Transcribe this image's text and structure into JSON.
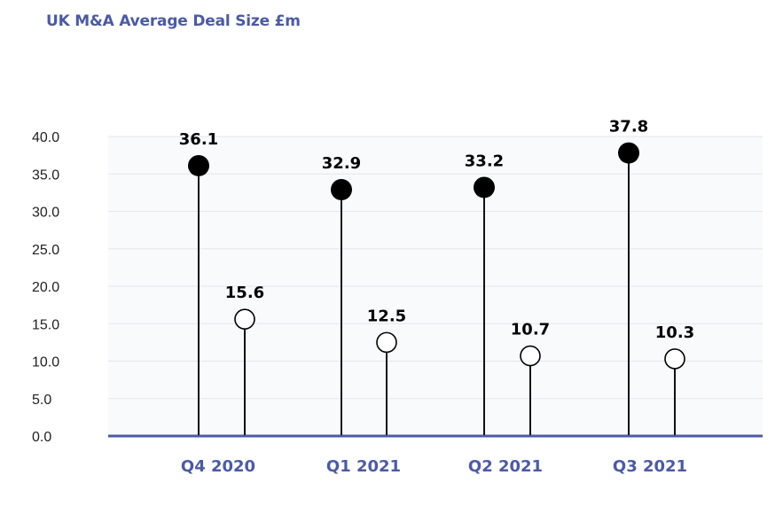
{
  "chart_data": {
    "type": "scatter",
    "title": "UK M&A Average Deal Size £m",
    "categories": [
      "Q4 2020",
      "Q1 2021",
      "Q2 2021",
      "Q3 2021"
    ],
    "series": [
      {
        "values": [
          36.1,
          32.9,
          33.2,
          37.8
        ],
        "marker": "filled",
        "color": "#000000"
      },
      {
        "values": [
          15.6,
          12.5,
          10.7,
          10.3
        ],
        "marker": "hollow",
        "color": "#000000"
      }
    ],
    "y_ticks": [
      "0.0",
      "5.0",
      "10.0",
      "15.0",
      "20.0",
      "25.0",
      "30.0",
      "35.0",
      "40.0"
    ],
    "ylim": [
      0,
      40
    ],
    "grid": true,
    "colors": {
      "title": "#4b5aa6",
      "axis": "#4b5aa6",
      "category_label": "#4b5aa6",
      "grid": "#e4e6ee",
      "plot_background": "#f9fafc"
    }
  }
}
